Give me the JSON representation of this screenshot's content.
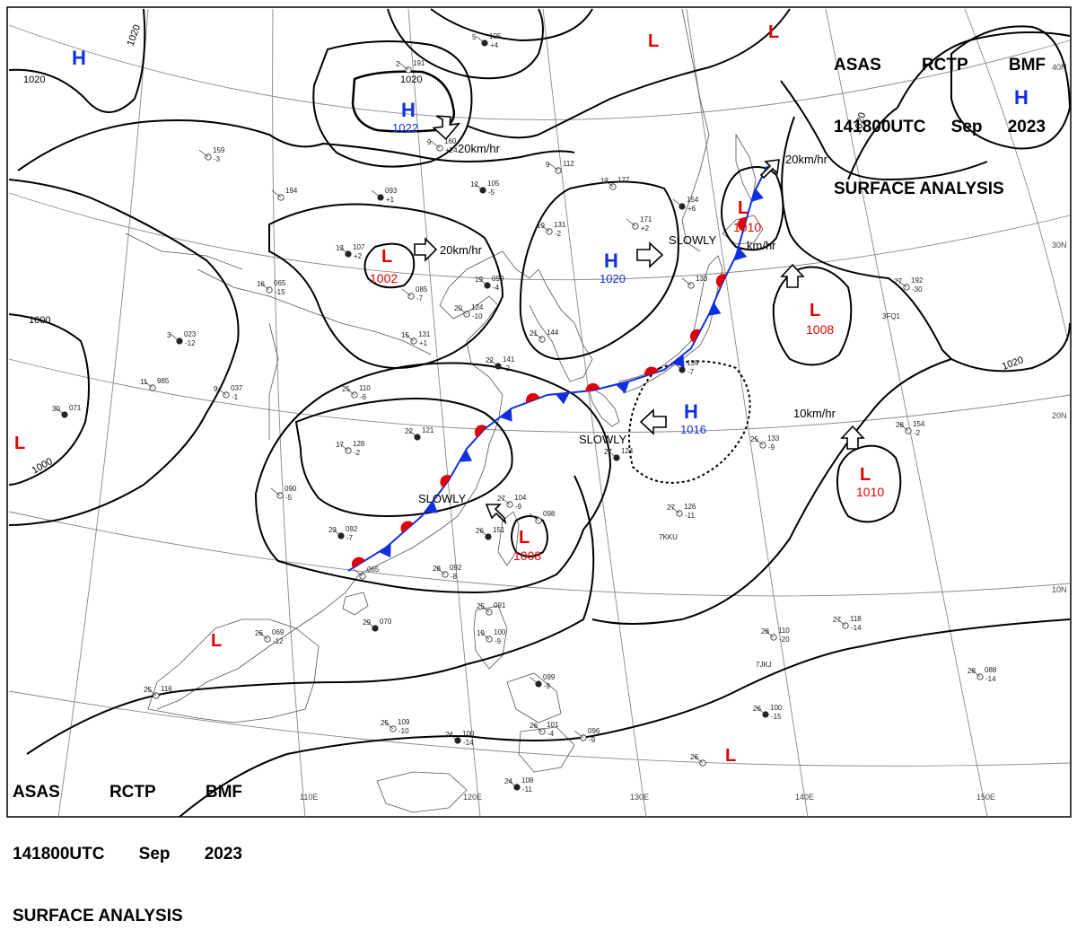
{
  "header": {
    "line1": [
      "ASAS",
      "RCTP",
      "BMF"
    ],
    "line2": [
      "141800UTC",
      "Sep",
      "2023"
    ],
    "line3": "SURFACE ANALYSIS"
  },
  "colors": {
    "low": "#e00000",
    "high": "#1030e0",
    "warm_front": "#e00000",
    "cold_front": "#1030e0",
    "isobar": "#000000",
    "grid": "#888888",
    "coast": "#555555"
  },
  "latitude_labels": [
    "40N",
    "30N",
    "20N",
    "10N"
  ],
  "longitude_labels": [
    "110E",
    "120E",
    "130E",
    "140E",
    "150E"
  ],
  "pressure_centers": [
    {
      "id": "h-nw",
      "type": "H",
      "pressure": ""
    },
    {
      "id": "h-mongolia",
      "type": "H",
      "pressure": "1022"
    },
    {
      "id": "h-korea",
      "type": "H",
      "pressure": "1020"
    },
    {
      "id": "h-south-japan",
      "type": "H",
      "pressure": "1016"
    },
    {
      "id": "h-ne",
      "type": "H",
      "pressure": ""
    },
    {
      "id": "l-west",
      "type": "L",
      "pressure": ""
    },
    {
      "id": "l-inner",
      "type": "L",
      "pressure": "1002"
    },
    {
      "id": "l-hokkaido",
      "type": "L",
      "pressure": "1010"
    },
    {
      "id": "l-pacific-north",
      "type": "L",
      "pressure": "1008"
    },
    {
      "id": "l-pacific-south",
      "type": "L",
      "pressure": "1010"
    },
    {
      "id": "l-taiwan",
      "type": "L",
      "pressure": "1008"
    },
    {
      "id": "l-sw",
      "type": "L",
      "pressure": ""
    },
    {
      "id": "l-south",
      "type": "L",
      "pressure": ""
    },
    {
      "id": "l-top-1",
      "type": "L",
      "pressure": ""
    },
    {
      "id": "l-top-2",
      "type": "L",
      "pressure": ""
    }
  ],
  "isobar_labels": [
    "1020",
    "1020",
    "1020",
    "1000",
    "1000",
    "1020",
    "1020"
  ],
  "movement_labels": [
    {
      "id": "move-mongolia",
      "text": "20km/hr"
    },
    {
      "id": "move-inner",
      "text": "20km/hr"
    },
    {
      "id": "move-hokkaido",
      "text": "20km/hr"
    },
    {
      "id": "move-japan-low",
      "text": "km/hr"
    },
    {
      "id": "move-pacific",
      "text": "10km/hr"
    },
    {
      "id": "move-korea-high",
      "text": "SLOWLY"
    },
    {
      "id": "move-south-high",
      "text": "SLOWLY"
    },
    {
      "id": "move-taiwan",
      "text": "SLOWLY"
    }
  ],
  "stations": [
    {
      "t": "5",
      "p": "105",
      "d": "+4"
    },
    {
      "t": "2",
      "p": "191",
      "d": ""
    },
    {
      "t": "9",
      "p": "160",
      "d": "+24"
    },
    {
      "t": "12",
      "p": "105",
      "d": "-5"
    },
    {
      "t": "13",
      "p": "127",
      "d": ""
    },
    {
      "t": "9",
      "p": "112",
      "d": ""
    },
    {
      "t": "",
      "p": "093",
      "d": "+1"
    },
    {
      "t": "",
      "p": "194",
      "d": ""
    },
    {
      "t": "",
      "p": "159",
      "d": "-3"
    },
    {
      "t": "13",
      "p": "107",
      "d": "+2"
    },
    {
      "t": "16",
      "p": "065",
      "d": "-15"
    },
    {
      "t": "",
      "p": "085",
      "d": "-7"
    },
    {
      "t": "19",
      "p": "099",
      "d": "-4"
    },
    {
      "t": "19",
      "p": "131",
      "d": "-2"
    },
    {
      "t": "",
      "p": "171",
      "d": "+2"
    },
    {
      "t": "",
      "p": "154",
      "d": "+6"
    },
    {
      "t": "",
      "p": "133",
      "d": ""
    },
    {
      "t": "27",
      "p": "192",
      "d": "-30"
    },
    {
      "t": "3",
      "p": "023",
      "d": "-12"
    },
    {
      "t": "9",
      "p": "037",
      "d": "-1"
    },
    {
      "t": "11",
      "p": "985",
      "d": ""
    },
    {
      "t": "30",
      "p": "071",
      "d": ""
    },
    {
      "t": "15",
      "p": "131",
      "d": "+1"
    },
    {
      "t": "20",
      "p": "124",
      "d": "-10"
    },
    {
      "t": "22",
      "p": "141",
      "d": "-2"
    },
    {
      "t": "21",
      "p": "144",
      "d": ""
    },
    {
      "t": "25",
      "p": "110",
      "d": "-6"
    },
    {
      "t": "22",
      "p": "121",
      "d": ""
    },
    {
      "t": "17",
      "p": "128",
      "d": "-2"
    },
    {
      "t": "",
      "p": "090",
      "d": "-5"
    },
    {
      "t": "",
      "p": "139",
      "d": "-7"
    },
    {
      "t": "25",
      "p": "133",
      "d": "-9"
    },
    {
      "t": "28",
      "p": "154",
      "d": "-2"
    },
    {
      "t": "27",
      "p": "124",
      "d": ""
    },
    {
      "t": "27",
      "p": "126",
      "d": "-11"
    },
    {
      "t": "27",
      "p": "104",
      "d": "-9"
    },
    {
      "t": "26",
      "p": "151",
      "d": ""
    },
    {
      "t": "",
      "p": "098",
      "d": ""
    },
    {
      "t": "28",
      "p": "092",
      "d": "-8"
    },
    {
      "t": "23",
      "p": "092",
      "d": "-7"
    },
    {
      "t": "",
      "p": "065",
      "d": ""
    },
    {
      "t": "26",
      "p": "069",
      "d": "-12"
    },
    {
      "t": "29",
      "p": "070",
      "d": ""
    },
    {
      "t": "25",
      "p": "091",
      "d": ""
    },
    {
      "t": "19",
      "p": "100",
      "d": "-9"
    },
    {
      "t": "",
      "p": "099",
      "d": "-9"
    },
    {
      "t": "25",
      "p": "116",
      "d": ""
    },
    {
      "t": "25",
      "p": "109",
      "d": "-10"
    },
    {
      "t": "24",
      "p": "100",
      "d": "-14"
    },
    {
      "t": "26",
      "p": "101",
      "d": "-4"
    },
    {
      "t": "",
      "p": "096",
      "d": "-9"
    },
    {
      "t": "24",
      "p": "108",
      "d": "-11"
    },
    {
      "t": "28",
      "p": "110",
      "d": "-20"
    },
    {
      "t": "27",
      "p": "118",
      "d": "-14"
    },
    {
      "t": "26",
      "p": "100",
      "d": "-15"
    },
    {
      "t": "28",
      "p": "088",
      "d": "-14"
    },
    {
      "t": "26",
      "p": "",
      "d": ""
    }
  ],
  "station_ids": [
    "7KKU",
    "7JKJ",
    "3FQ1"
  ]
}
